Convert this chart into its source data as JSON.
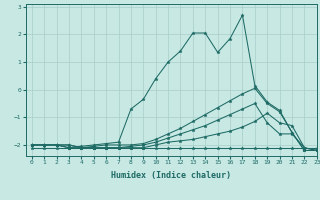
{
  "xlabel": "Humidex (Indice chaleur)",
  "xlim": [
    -0.5,
    23
  ],
  "ylim": [
    -2.4,
    3.1
  ],
  "yticks": [
    -2,
    -1,
    0,
    1,
    2,
    3
  ],
  "xticks": [
    0,
    1,
    2,
    3,
    4,
    5,
    6,
    7,
    8,
    9,
    10,
    11,
    12,
    13,
    14,
    15,
    16,
    17,
    18,
    19,
    20,
    21,
    22,
    23
  ],
  "bg_color": "#c8e8e4",
  "line_color": "#1e6b65",
  "grid_color": "#a8cec8",
  "lines": [
    {
      "x": [
        0,
        1,
        2,
        3,
        4,
        5,
        6,
        7,
        8,
        9,
        10,
        11,
        12,
        13,
        14,
        15,
        16,
        17,
        18,
        19,
        20,
        21,
        22,
        23
      ],
      "y": [
        -2.1,
        -2.1,
        -2.1,
        -2.1,
        -2.1,
        -2.1,
        -2.1,
        -2.1,
        -2.1,
        -2.1,
        -2.1,
        -2.1,
        -2.1,
        -2.1,
        -2.1,
        -2.1,
        -2.1,
        -2.1,
        -2.1,
        -2.1,
        -2.1,
        -2.1,
        -2.1,
        -2.1
      ]
    },
    {
      "x": [
        0,
        1,
        2,
        3,
        4,
        5,
        6,
        7,
        8,
        9,
        10,
        11,
        12,
        13,
        14,
        15,
        16,
        17,
        18,
        19,
        20,
        21,
        22,
        23
      ],
      "y": [
        -2.0,
        -2.0,
        -2.0,
        -2.0,
        -2.1,
        -2.1,
        -2.1,
        -2.1,
        -2.1,
        -2.1,
        -2.0,
        -1.9,
        -1.85,
        -1.8,
        -1.7,
        -1.6,
        -1.5,
        -1.35,
        -1.15,
        -0.85,
        -1.2,
        -1.3,
        -2.1,
        -2.2
      ]
    },
    {
      "x": [
        0,
        1,
        2,
        3,
        4,
        5,
        6,
        7,
        8,
        9,
        10,
        11,
        12,
        13,
        14,
        15,
        16,
        17,
        18,
        19,
        20,
        21,
        22,
        23
      ],
      "y": [
        -2.0,
        -2.0,
        -2.0,
        -2.0,
        -2.1,
        -2.1,
        -2.1,
        -2.1,
        -2.05,
        -2.0,
        -1.9,
        -1.75,
        -1.6,
        -1.45,
        -1.3,
        -1.1,
        -0.9,
        -0.7,
        -0.5,
        -1.2,
        -1.6,
        -1.6,
        -2.1,
        -2.2
      ]
    },
    {
      "x": [
        0,
        1,
        2,
        3,
        4,
        5,
        6,
        7,
        8,
        9,
        10,
        11,
        12,
        13,
        14,
        15,
        16,
        17,
        18,
        19,
        20,
        21,
        22,
        23
      ],
      "y": [
        -2.0,
        -2.0,
        -2.0,
        -2.1,
        -2.1,
        -2.05,
        -2.0,
        -2.0,
        -2.0,
        -1.95,
        -1.8,
        -1.6,
        -1.4,
        -1.15,
        -0.9,
        -0.65,
        -0.4,
        -0.15,
        0.05,
        -0.5,
        -0.8,
        -1.55,
        -2.2,
        -2.2
      ]
    },
    {
      "x": [
        0,
        1,
        2,
        3,
        4,
        5,
        6,
        7,
        8,
        9,
        10,
        11,
        12,
        13,
        14,
        15,
        16,
        17,
        18,
        19,
        20,
        21,
        22,
        23
      ],
      "y": [
        -2.0,
        -2.0,
        -2.0,
        -2.1,
        -2.05,
        -2.0,
        -1.95,
        -1.9,
        -0.7,
        -0.35,
        0.4,
        1.0,
        1.4,
        2.05,
        2.05,
        1.35,
        1.85,
        2.7,
        0.15,
        -0.45,
        -0.75,
        -1.55,
        -2.2,
        -2.2
      ]
    }
  ]
}
